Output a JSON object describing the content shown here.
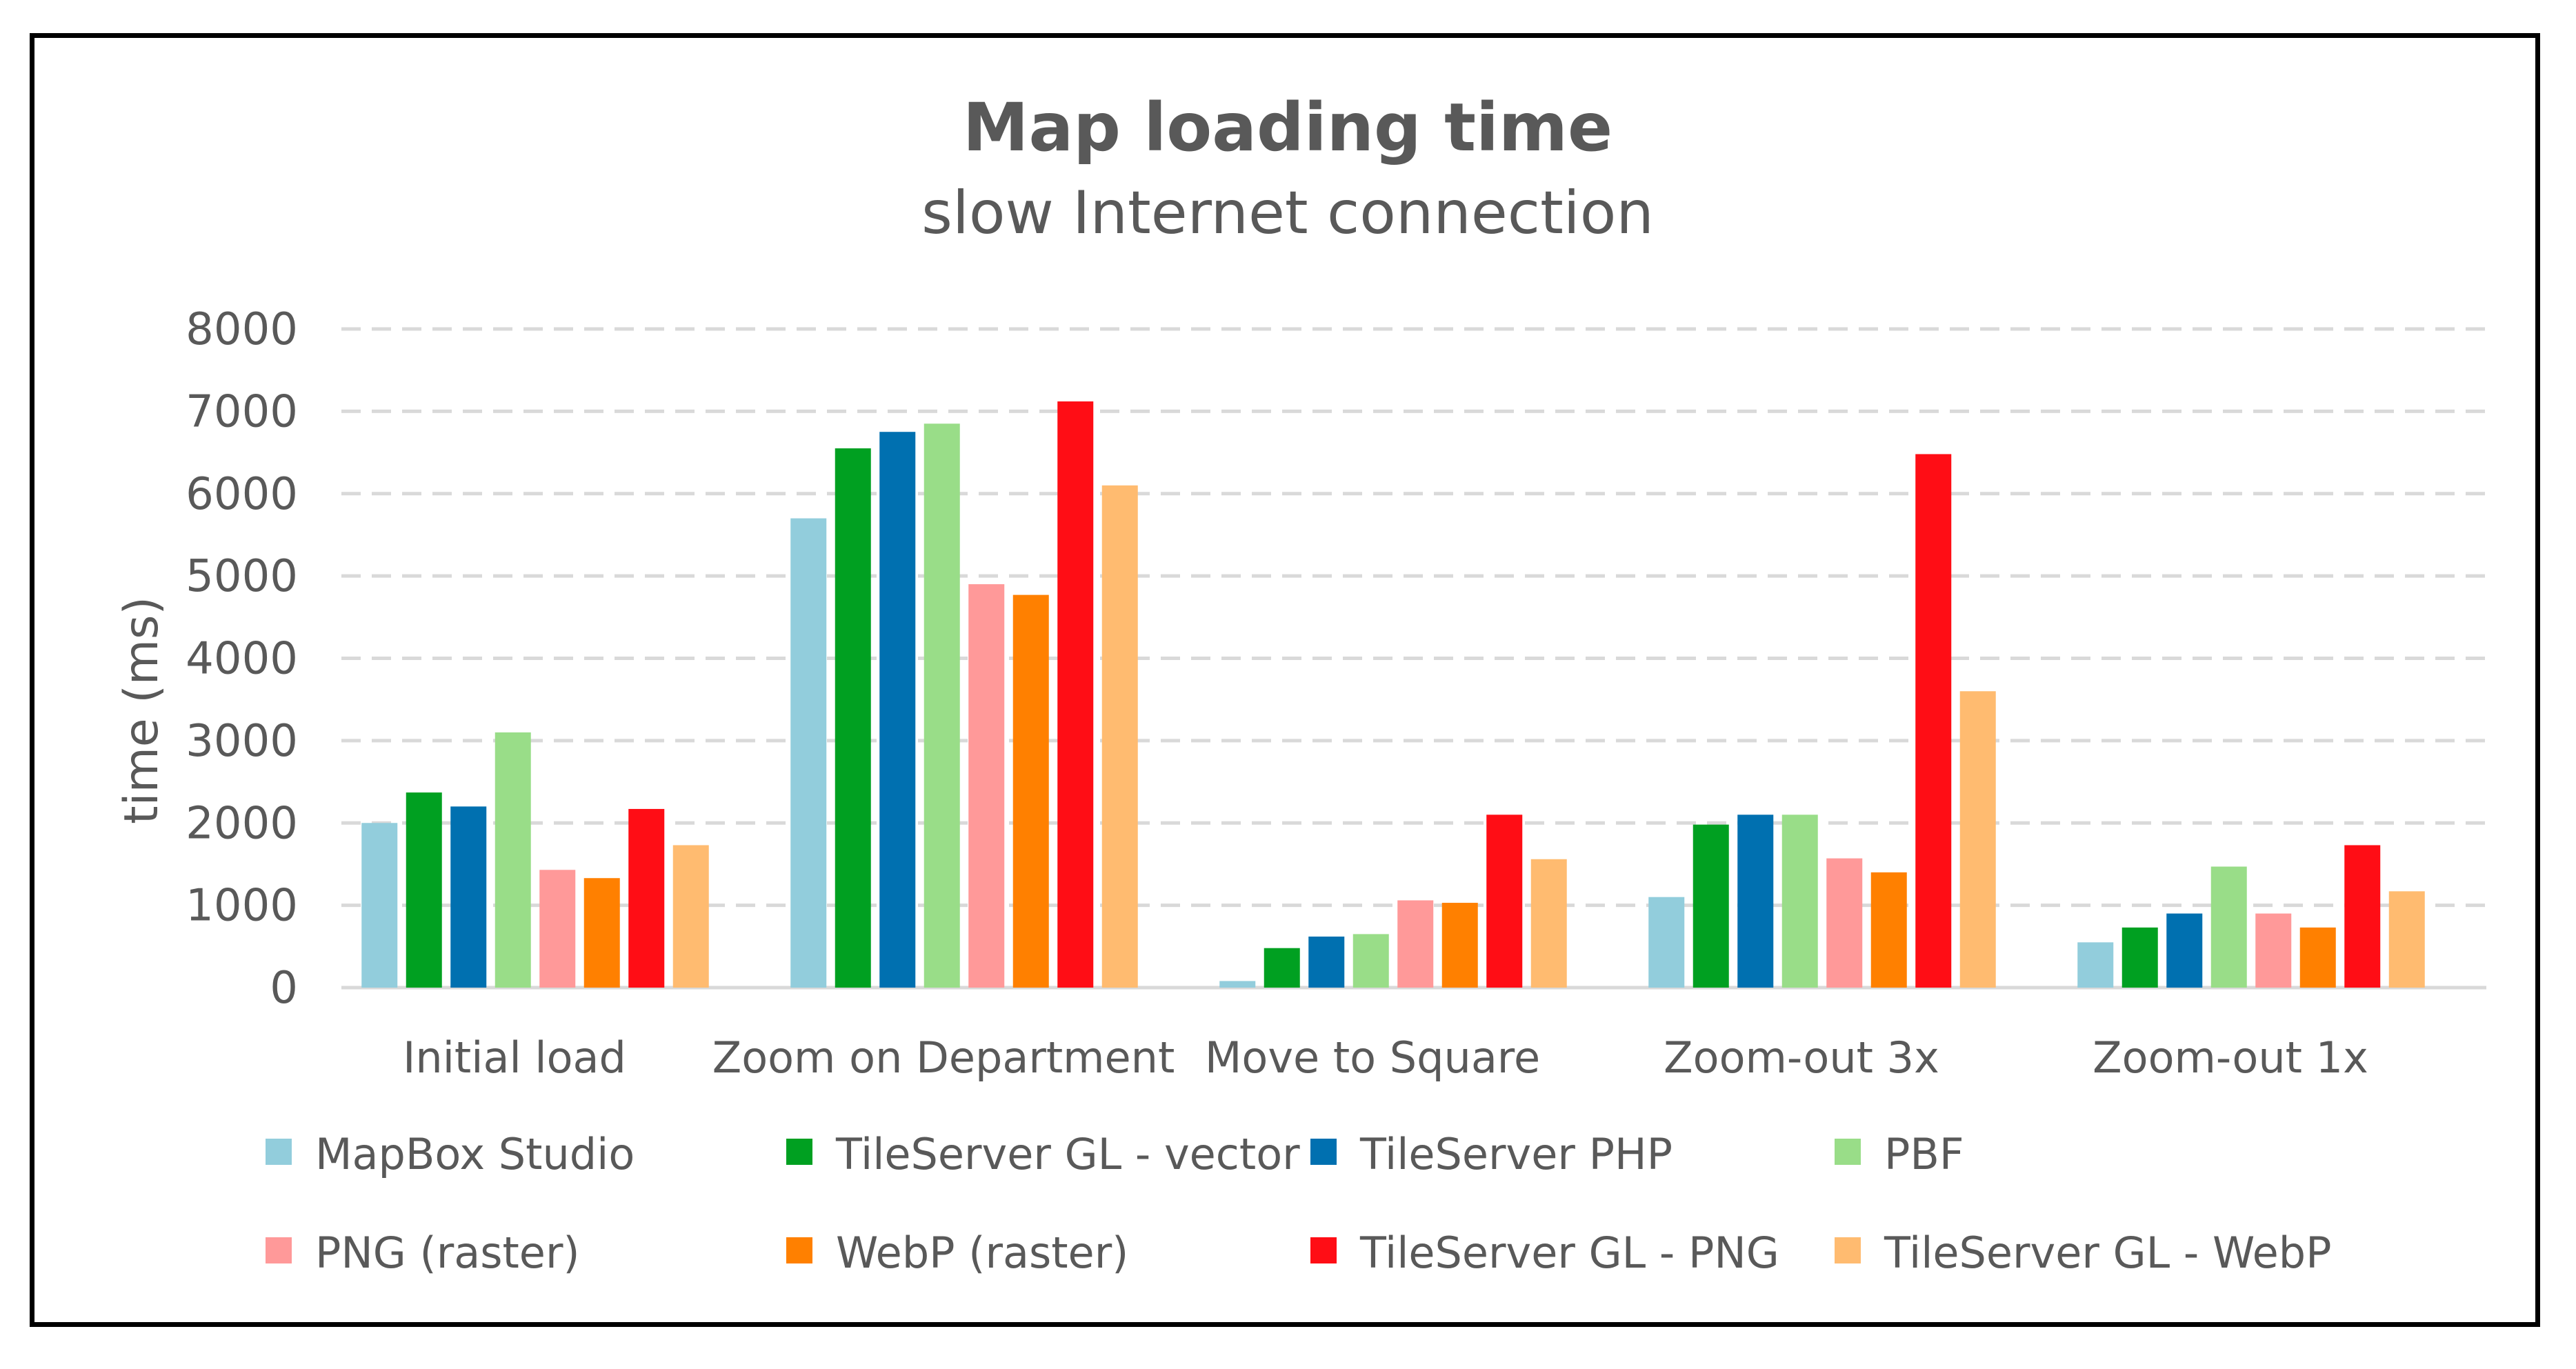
{
  "chart_data": {
    "type": "bar",
    "title": "Map loading time",
    "subtitle": "slow Internet connection",
    "xlabel": "",
    "ylabel": "time (ms)",
    "ylim": [
      0,
      8000
    ],
    "yticks": [
      "0",
      "1000",
      "2000",
      "3000",
      "4000",
      "5000",
      "6000",
      "7000",
      "8000"
    ],
    "grid": true,
    "legend_position": "bottom",
    "categories": [
      "Initial load",
      "Zoom on Department",
      "Move to Square",
      "Zoom-out 3x",
      "Zoom-out 1x"
    ],
    "series": [
      {
        "name": "MapBox Studio",
        "color": "#92cddc",
        "values": [
          2000,
          5700,
          80,
          1100,
          550
        ]
      },
      {
        "name": "TileServer GL - vector",
        "color": "#00a021",
        "values": [
          2370,
          6550,
          480,
          1980,
          730
        ]
      },
      {
        "name": "TileServer PHP",
        "color": "#0070b0",
        "values": [
          2200,
          6750,
          620,
          2100,
          900
        ]
      },
      {
        "name": "PBF",
        "color": "#99dd88",
        "values": [
          3100,
          6850,
          650,
          2100,
          1470
        ]
      },
      {
        "name": "PNG (raster)",
        "color": "#ff9999",
        "values": [
          1430,
          4900,
          1060,
          1570,
          900
        ]
      },
      {
        "name": "WebP (raster)",
        "color": "#ff8000",
        "values": [
          1330,
          4770,
          1030,
          1400,
          730
        ]
      },
      {
        "name": "TileServer GL - PNG",
        "color": "#ff0d15",
        "values": [
          2170,
          7120,
          2100,
          6480,
          1730
        ]
      },
      {
        "name": "TileServer GL - WebP",
        "color": "#ffbb70",
        "values": [
          1730,
          6100,
          1560,
          3600,
          1170
        ]
      }
    ]
  }
}
